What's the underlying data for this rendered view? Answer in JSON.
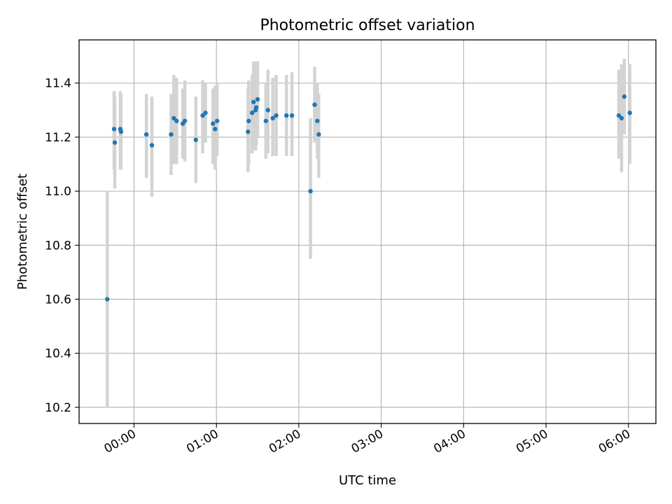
{
  "chart_data": {
    "type": "scatter",
    "title": "Photometric offset variation",
    "xlabel": "UTC time",
    "ylabel": "Photometric offset",
    "x_unit": "UTC time of day",
    "xlim": [
      "23:20",
      "06:20"
    ],
    "ylim": [
      10.14,
      11.56
    ],
    "x_ticks": [
      "00:00",
      "01:00",
      "02:00",
      "03:00",
      "04:00",
      "05:00",
      "06:00"
    ],
    "y_ticks": [
      "10.2",
      "10.4",
      "10.6",
      "10.8",
      "11.0",
      "11.2",
      "11.4"
    ],
    "grid": true,
    "legend": "none",
    "marker_color": "#1f77b4",
    "errorbar_color": "#d3d3d3",
    "series": [
      {
        "points": [
          {
            "t": "23:40:30",
            "y": 10.6,
            "lo": 10.2,
            "hi": 11.0
          },
          {
            "t": "23:45:30",
            "y": 11.23,
            "lo": 11.08,
            "hi": 11.37
          },
          {
            "t": "23:46:00",
            "y": 11.18,
            "lo": 11.01,
            "hi": 11.35
          },
          {
            "t": "23:50:00",
            "y": 11.23,
            "lo": 11.08,
            "hi": 11.37
          },
          {
            "t": "23:50:30",
            "y": 11.22,
            "lo": 11.08,
            "hi": 11.36
          },
          {
            "t": "00:09:00",
            "y": 11.21,
            "lo": 11.05,
            "hi": 11.36
          },
          {
            "t": "00:13:00",
            "y": 11.17,
            "lo": 10.98,
            "hi": 11.35
          },
          {
            "t": "00:27:00",
            "y": 11.21,
            "lo": 11.06,
            "hi": 11.36
          },
          {
            "t": "00:29:00",
            "y": 11.27,
            "lo": 11.1,
            "hi": 11.43
          },
          {
            "t": "00:31:00",
            "y": 11.26,
            "lo": 11.1,
            "hi": 11.42
          },
          {
            "t": "00:35:30",
            "y": 11.25,
            "lo": 11.12,
            "hi": 11.38
          },
          {
            "t": "00:37:00",
            "y": 11.26,
            "lo": 11.11,
            "hi": 11.41
          },
          {
            "t": "00:45:00",
            "y": 11.19,
            "lo": 11.03,
            "hi": 11.35
          },
          {
            "t": "00:50:00",
            "y": 11.28,
            "lo": 11.14,
            "hi": 11.41
          },
          {
            "t": "00:52:00",
            "y": 11.29,
            "lo": 11.18,
            "hi": 11.4
          },
          {
            "t": "00:57:30",
            "y": 11.25,
            "lo": 11.1,
            "hi": 11.38
          },
          {
            "t": "00:59:00",
            "y": 11.23,
            "lo": 11.08,
            "hi": 11.39
          },
          {
            "t": "01:00:30",
            "y": 11.26,
            "lo": 11.13,
            "hi": 11.4
          },
          {
            "t": "01:23:00",
            "y": 11.22,
            "lo": 11.07,
            "hi": 11.38
          },
          {
            "t": "01:23:30",
            "y": 11.26,
            "lo": 11.1,
            "hi": 11.41
          },
          {
            "t": "01:26:00",
            "y": 11.29,
            "lo": 11.14,
            "hi": 11.43
          },
          {
            "t": "01:27:00",
            "y": 11.33,
            "lo": 11.17,
            "hi": 11.48
          },
          {
            "t": "01:28:30",
            "y": 11.3,
            "lo": 11.15,
            "hi": 11.46
          },
          {
            "t": "01:29:00",
            "y": 11.31,
            "lo": 11.17,
            "hi": 11.48
          },
          {
            "t": "01:30:00",
            "y": 11.34,
            "lo": 11.2,
            "hi": 11.48
          },
          {
            "t": "01:36:00",
            "y": 11.26,
            "lo": 11.12,
            "hi": 11.4
          },
          {
            "t": "01:37:30",
            "y": 11.3,
            "lo": 11.14,
            "hi": 11.45
          },
          {
            "t": "01:41:00",
            "y": 11.27,
            "lo": 11.13,
            "hi": 11.42
          },
          {
            "t": "01:43:30",
            "y": 11.28,
            "lo": 11.13,
            "hi": 11.43
          },
          {
            "t": "01:51:00",
            "y": 11.28,
            "lo": 11.13,
            "hi": 11.43
          },
          {
            "t": "01:55:00",
            "y": 11.28,
            "lo": 11.13,
            "hi": 11.44
          },
          {
            "t": "02:08:30",
            "y": 11.0,
            "lo": 10.75,
            "hi": 11.27
          },
          {
            "t": "02:11:30",
            "y": 11.32,
            "lo": 11.18,
            "hi": 11.46
          },
          {
            "t": "02:13:30",
            "y": 11.26,
            "lo": 11.12,
            "hi": 11.4
          },
          {
            "t": "02:14:30",
            "y": 11.21,
            "lo": 11.05,
            "hi": 11.36
          },
          {
            "t": "05:53:00",
            "y": 11.28,
            "lo": 11.12,
            "hi": 11.45
          },
          {
            "t": "05:55:00",
            "y": 11.27,
            "lo": 11.07,
            "hi": 11.47
          },
          {
            "t": "05:57:00",
            "y": 11.35,
            "lo": 11.21,
            "hi": 11.49
          },
          {
            "t": "06:01:00",
            "y": 11.29,
            "lo": 11.1,
            "hi": 11.47
          }
        ]
      }
    ]
  }
}
